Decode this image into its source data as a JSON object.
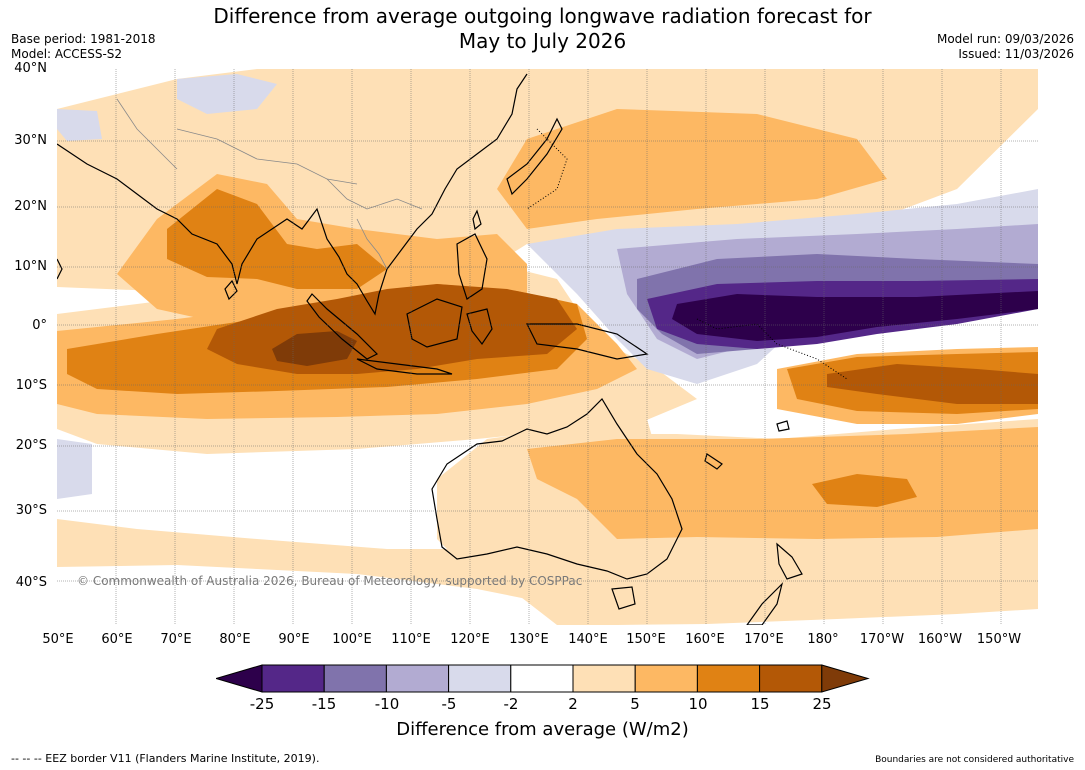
{
  "title": {
    "line1": "Difference from average outgoing longwave radiation forecast for",
    "line2": "May to July 2026"
  },
  "meta_left": {
    "base_period": "Base period: 1981-2018",
    "model": "Model: ACCESS-S2"
  },
  "meta_right": {
    "model_run": "Model run: 09/03/2026",
    "issued": "Issued: 11/03/2026"
  },
  "map": {
    "lat_labels": [
      "40°N",
      "30°N",
      "20°N",
      "10°N",
      "0°",
      "10°S",
      "20°S",
      "30°S",
      "40°S"
    ],
    "lon_labels": [
      "50°E",
      "60°E",
      "70°E",
      "80°E",
      "90°E",
      "100°E",
      "110°E",
      "120°E",
      "130°E",
      "140°E",
      "150°E",
      "160°E",
      "170°E",
      "180°",
      "170°W",
      "160°W",
      "150°W"
    ],
    "copyright": "© Commonwealth of Australia 2026, Bureau of Meteorology, supported by COSPPac",
    "colors": {
      "ocean": "#ffffff",
      "neg_25": "#2d004b",
      "neg_15": "#542788",
      "neg_10": "#8073ac",
      "neg_5": "#b2abd2",
      "neg_2": "#d8daeb",
      "neutral": "#ffffff",
      "pos_2": "#fee0b6",
      "pos_5": "#fdb863",
      "pos_10": "#e08214",
      "pos_15": "#b35806",
      "pos_25": "#7f3b08"
    }
  },
  "colorbar": {
    "ticks": [
      "-25",
      "-15",
      "-10",
      "-5",
      "-2",
      "2",
      "5",
      "10",
      "15",
      "25"
    ],
    "colors": [
      "#2d004b",
      "#542788",
      "#8073ac",
      "#b2abd2",
      "#d8daeb",
      "#ffffff",
      "#fee0b6",
      "#fdb863",
      "#e08214",
      "#b35806",
      "#7f3b08"
    ],
    "label": "Difference from average (W/m2)"
  },
  "footer": {
    "left": "--  --  -- EEZ border V11 (Flanders Marine Institute, 2019).",
    "right": "Boundaries are not considered authoritative"
  }
}
